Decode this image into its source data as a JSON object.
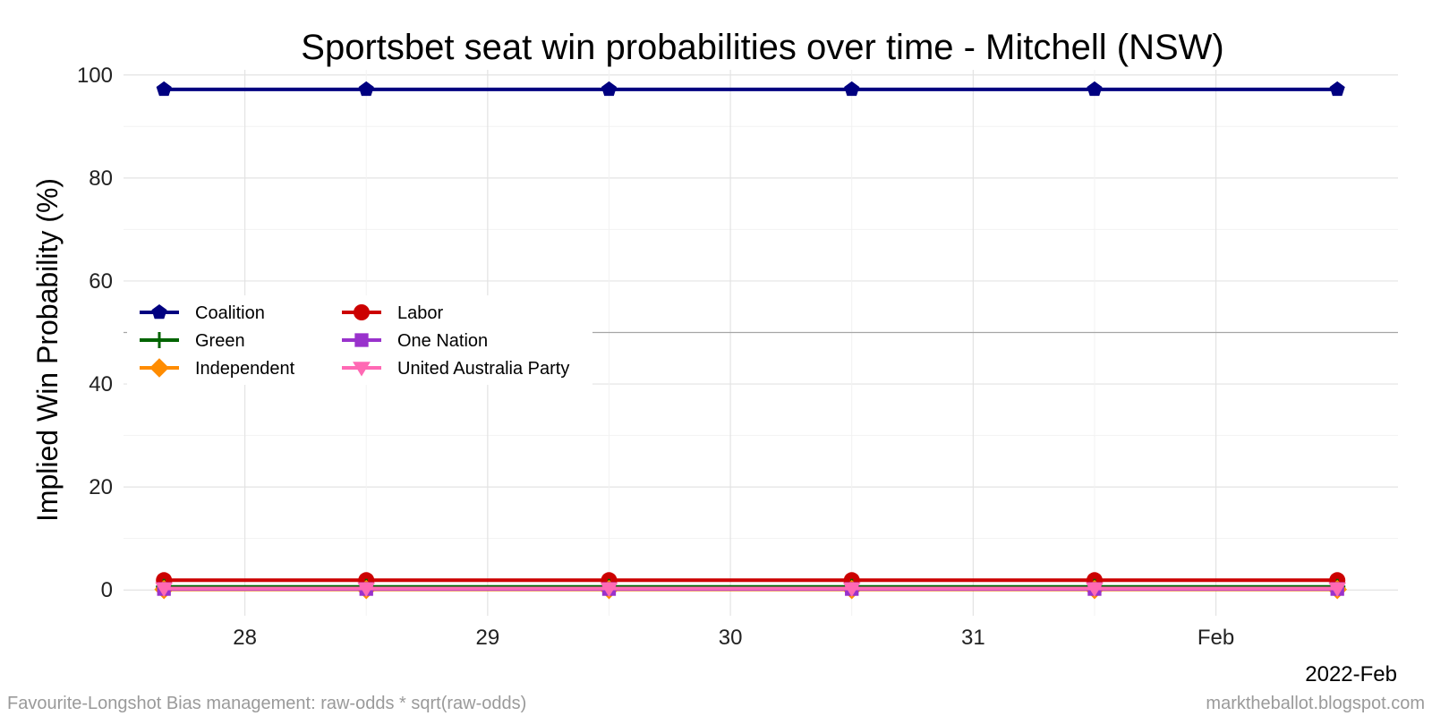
{
  "chart_data": {
    "type": "line",
    "title": "Sportsbet seat win probabilities over time - Mitchell (NSW)",
    "xlabel": "",
    "ylabel": "Implied Win Probability (%)",
    "x": [
      "2022-01-27 16:00",
      "2022-01-28 12:00",
      "2022-01-29 12:00",
      "2022-01-30 12:00",
      "2022-01-31 12:00",
      "2022-02-01 12:00"
    ],
    "x_ticks": [
      {
        "date": "2022-01-28 00:00",
        "label": "28"
      },
      {
        "date": "2022-01-29 00:00",
        "label": "29"
      },
      {
        "date": "2022-01-30 00:00",
        "label": "30"
      },
      {
        "date": "2022-01-31 00:00",
        "label": "31"
      },
      {
        "date": "2022-02-01 00:00",
        "label": "Feb"
      }
    ],
    "xlim": [
      "2022-01-27 12:00",
      "2022-02-01 18:00"
    ],
    "x_note": "2022-Feb",
    "ylim": [
      -5,
      101
    ],
    "y_ticks": [
      0,
      20,
      40,
      60,
      80,
      100
    ],
    "reference_line": 50,
    "grid": true,
    "legend_position": "center-left",
    "series": [
      {
        "name": "Coalition",
        "color": "#000080",
        "marker": "pentagon",
        "values": [
          97.2,
          97.2,
          97.2,
          97.2,
          97.2,
          97.2
        ]
      },
      {
        "name": "Labor",
        "color": "#cc0000",
        "marker": "circle",
        "values": [
          1.9,
          1.9,
          1.9,
          1.9,
          1.9,
          1.9
        ]
      },
      {
        "name": "Green",
        "color": "#006400",
        "marker": "plus",
        "values": [
          0.6,
          0.6,
          0.6,
          0.6,
          0.6,
          0.6
        ]
      },
      {
        "name": "One Nation",
        "color": "#9932cc",
        "marker": "square",
        "values": [
          0.2,
          0.2,
          0.2,
          0.2,
          0.2,
          0.2
        ]
      },
      {
        "name": "Independent",
        "color": "#ff8c00",
        "marker": "diamond",
        "values": [
          0.1,
          0.1,
          0.1,
          0.1,
          0.1,
          0.1
        ]
      },
      {
        "name": "United Australia Party",
        "color": "#ff69b4",
        "marker": "triangle-down",
        "values": [
          0.3,
          0.3,
          0.3,
          0.3,
          0.3,
          0.3
        ]
      }
    ],
    "legend_order": [
      "Coalition",
      "Labor",
      "Green",
      "One Nation",
      "Independent",
      "United Australia Party"
    ]
  },
  "caption_left": "Favourite-Longshot Bias management: raw-odds * sqrt(raw-odds)",
  "caption_right": "marktheballot.blogspot.com"
}
